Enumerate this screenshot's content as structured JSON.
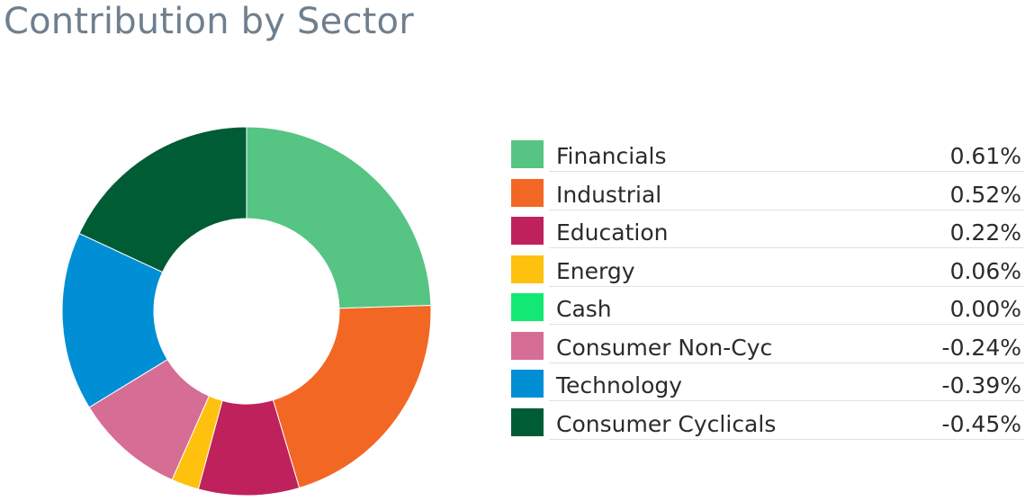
{
  "title": "Contribution by Sector",
  "chart_data": {
    "type": "pie",
    "variant": "donut",
    "title": "Contribution by Sector",
    "legend_position": "right",
    "categories": [
      "Financials",
      "Industrial",
      "Education",
      "Energy",
      "Cash",
      "Consumer Non-Cyc",
      "Technology",
      "Consumer Cyclicals"
    ],
    "values": [
      0.61,
      0.52,
      0.22,
      0.06,
      0.0,
      -0.24,
      -0.39,
      -0.45
    ],
    "value_labels": [
      "0.61%",
      "0.52%",
      "0.22%",
      "0.06%",
      "0.00%",
      "-0.24%",
      "-0.39%",
      "-0.45%"
    ],
    "unit": "%",
    "colors": [
      "#56c482",
      "#f26724",
      "#bf215c",
      "#fec10d",
      "#12e873",
      "#d66d94",
      "#008fd5",
      "#005c35"
    ]
  }
}
